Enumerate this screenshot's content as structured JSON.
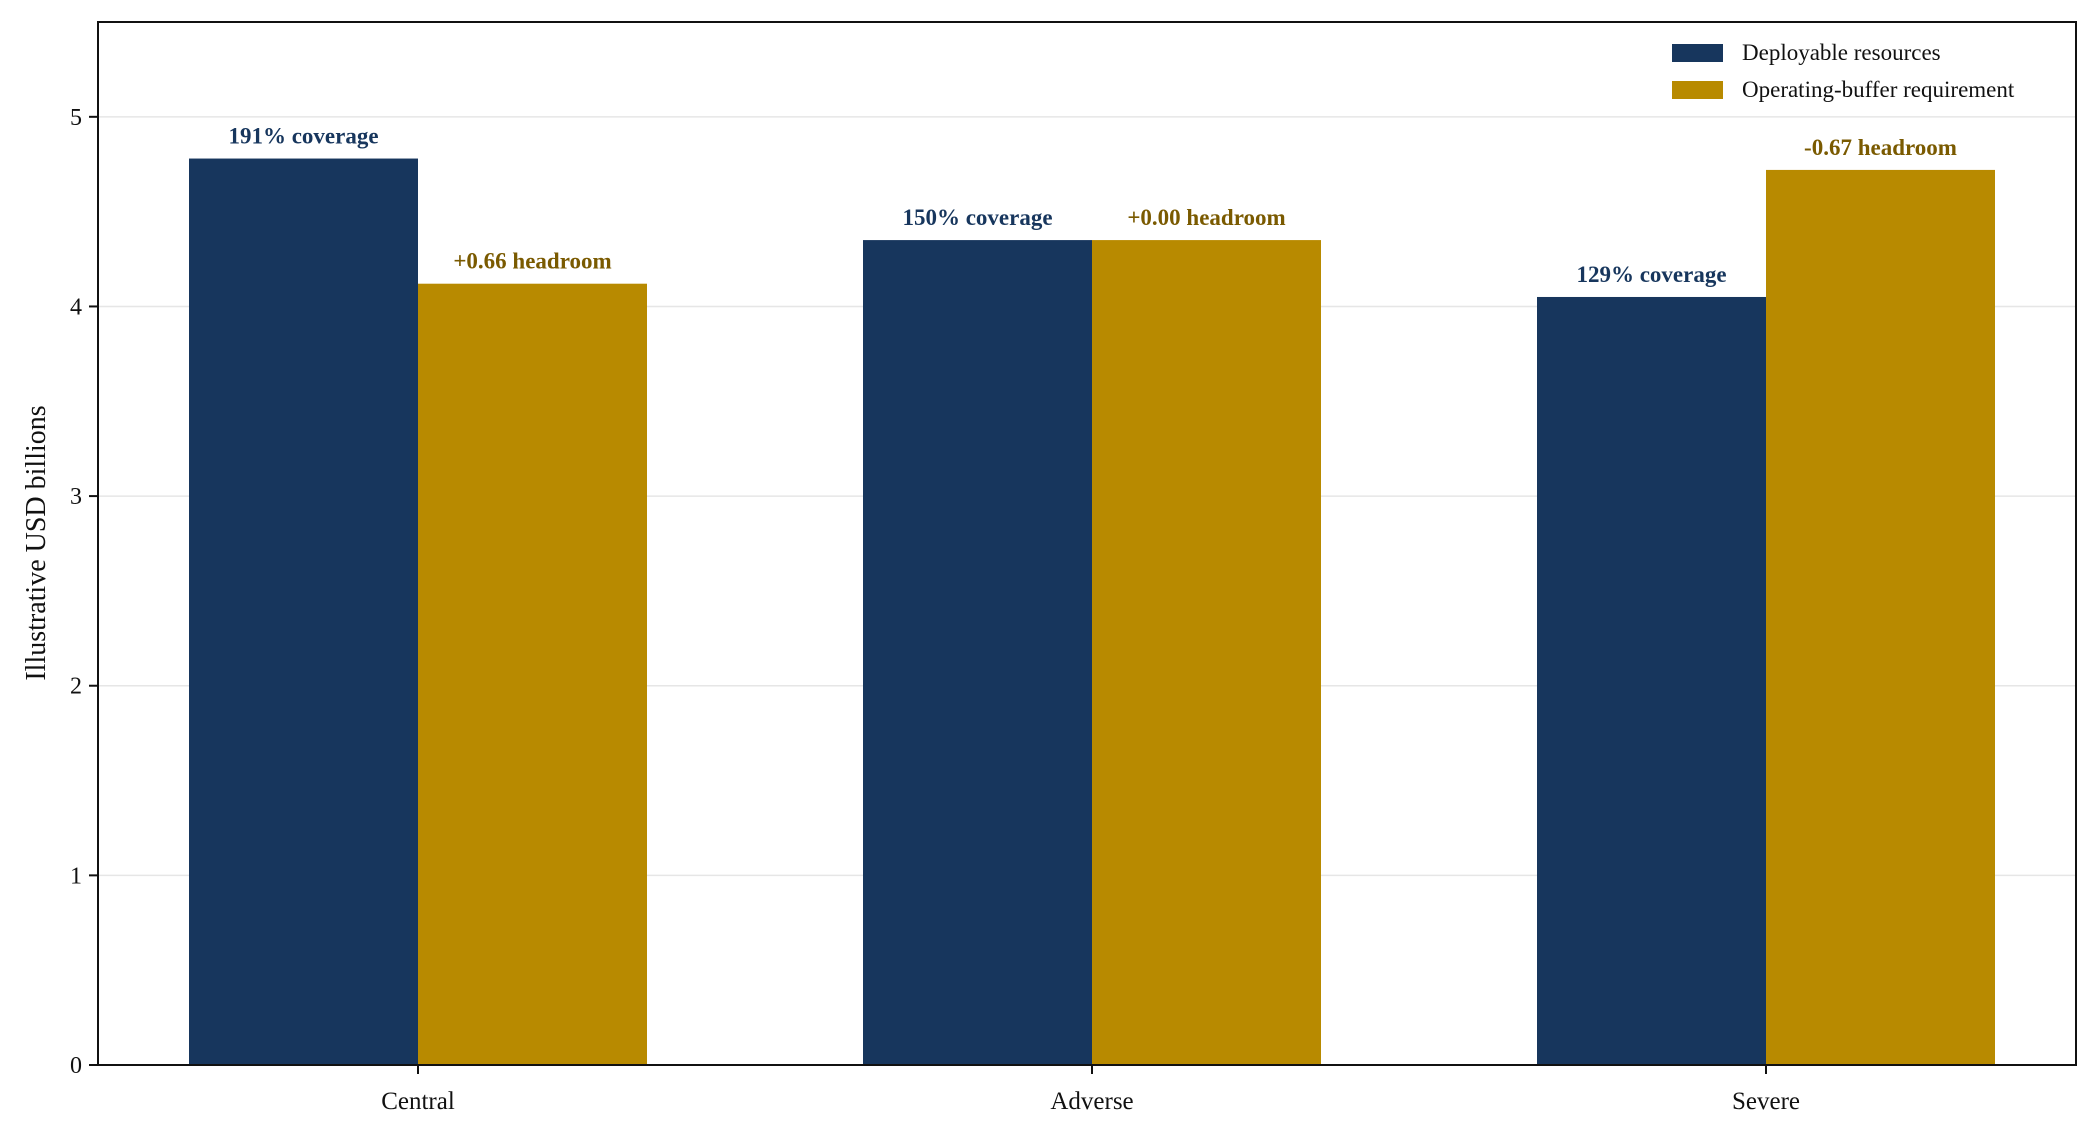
{
  "chart_data": {
    "type": "bar",
    "categories": [
      "Central",
      "Adverse",
      "Severe"
    ],
    "series": [
      {
        "name": "Deployable resources",
        "color": "#17365d",
        "values": [
          4.78,
          4.35,
          4.05
        ],
        "labels": [
          "191% coverage",
          "150% coverage",
          "129% coverage"
        ],
        "label_color": "#17365d"
      },
      {
        "name": "Operating-buffer requirement",
        "color": "#b88a00",
        "values": [
          4.12,
          4.35,
          4.72
        ],
        "labels": [
          "+0.66 headroom",
          "+0.00 headroom",
          "-0.67 headroom"
        ],
        "label_color": "#7a5a00"
      }
    ],
    "title": "",
    "xlabel": "",
    "ylabel": "Illustrative USD billions",
    "ylim": [
      0,
      5.5
    ],
    "yticks": [
      0,
      1,
      2,
      3,
      4,
      5
    ],
    "grid": "horizontal",
    "legend_position": "top-right"
  }
}
